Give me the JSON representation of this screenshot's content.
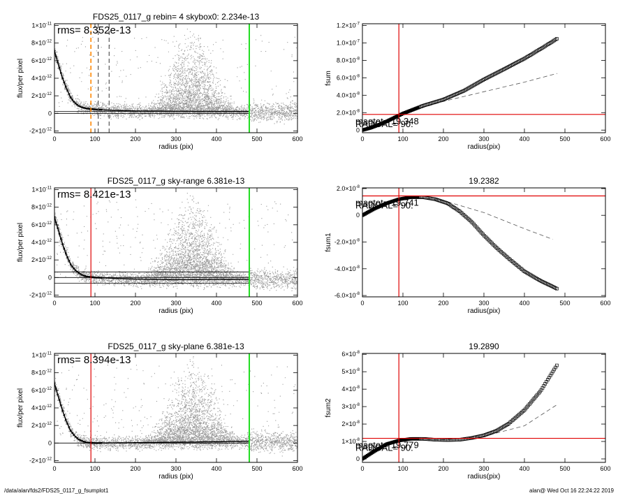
{
  "footer": {
    "left": "/data/alan/fds2/FDS25_0117_g_fsumplot1",
    "right": "alan@  Wed Oct 16 22:24:22 2019"
  },
  "colors": {
    "red": "#e00000",
    "green": "#22dd22",
    "orange": "#ff8800",
    "scatter": "#999999",
    "dash": "#555555"
  },
  "chart_data": [
    {
      "id": "left1",
      "type": "scatter",
      "title": "FDS25_0117_g rebin= 4    skybox0:  2.234e-13",
      "xlabel": "radius (pix)",
      "ylabel": "flux/per pixel",
      "xlim": [
        0,
        600
      ],
      "ylim": [
        -2.2e-12,
        1.02e-11
      ],
      "xticks": [
        0,
        100,
        200,
        300,
        400,
        500,
        600
      ],
      "xticklabels": [
        "0",
        "100",
        "200",
        "300",
        "400",
        "500",
        "600"
      ],
      "yticks": [
        -2e-12,
        0,
        2e-12,
        4e-12,
        6e-12,
        8e-12,
        1e-11
      ],
      "yticklabels": [
        {
          "m": "-2",
          "e": "-12"
        },
        {
          "m": "0",
          "e": ""
        },
        {
          "m": "2",
          "e": "-12"
        },
        {
          "m": "4",
          "e": "-12"
        },
        {
          "m": "6",
          "e": "-12"
        },
        {
          "m": "8",
          "e": "-12"
        },
        {
          "m": "1",
          "e": "-11"
        }
      ],
      "annotation": "rms= 8.352e-13",
      "profile": [
        [
          0,
          7.1e-12
        ],
        [
          10,
          5.5e-12
        ],
        [
          20,
          4e-12
        ],
        [
          30,
          2.8e-12
        ],
        [
          40,
          1.8e-12
        ],
        [
          50,
          1.2e-12
        ],
        [
          60,
          8.5e-13
        ],
        [
          70,
          6.5e-13
        ],
        [
          80,
          5.5e-13
        ],
        [
          90,
          5e-13
        ],
        [
          110,
          4.2e-13
        ],
        [
          140,
          3.5e-13
        ],
        [
          200,
          2.8e-13
        ],
        [
          300,
          2.4e-13
        ],
        [
          400,
          2.3e-13
        ],
        [
          480,
          2.2e-13
        ]
      ],
      "hlines": [
        0,
        2.234e-13
      ],
      "vlines": [
        {
          "x": 90,
          "color": "orange",
          "dash": true
        },
        {
          "x": 108,
          "color": "dash",
          "dash": true
        },
        {
          "x": 135,
          "color": "dash",
          "dash": true
        },
        {
          "x": 481,
          "color": "green",
          "dash": false
        }
      ],
      "cloud": {
        "peak_x": 340,
        "width": 55,
        "ymax": 1e-11
      }
    },
    {
      "id": "right1",
      "type": "scatter",
      "title": "",
      "xlabel": "radius(pix)",
      "ylabel": "fsum",
      "xlim": [
        0,
        600
      ],
      "ylim": [
        -3e-09,
        1.22e-07
      ],
      "xticks": [
        0,
        100,
        200,
        300,
        400,
        500,
        600
      ],
      "xticklabels": [
        "0",
        "100",
        "200",
        "300",
        "400",
        "500",
        "600"
      ],
      "yticks": [
        0,
        2e-08,
        4e-08,
        6e-08,
        8e-08,
        1e-07,
        1.2e-07
      ],
      "yticklabels": [
        {
          "m": "0",
          "e": ""
        },
        {
          "m": "2.0",
          "e": "-8"
        },
        {
          "m": "4.0",
          "e": "-8"
        },
        {
          "m": "6.0",
          "e": "-8"
        },
        {
          "m": "8.0",
          "e": "-8"
        },
        {
          "m": "1.0",
          "e": "-7"
        },
        {
          "m": "1.2",
          "e": "-7"
        }
      ],
      "points": [
        [
          0,
          0
        ],
        [
          20,
          2.5e-09
        ],
        [
          40,
          6e-09
        ],
        [
          60,
          1e-08
        ],
        [
          80,
          1.45e-08
        ],
        [
          100,
          1.9e-08
        ],
        [
          150,
          2.8e-08
        ],
        [
          200,
          3.5e-08
        ],
        [
          250,
          4.5e-08
        ],
        [
          300,
          5.8e-08
        ],
        [
          350,
          7e-08
        ],
        [
          400,
          8.2e-08
        ],
        [
          450,
          9.6e-08
        ],
        [
          481,
          1.05e-07
        ]
      ],
      "dashed": [
        [
          80,
          1.5e-08
        ],
        [
          150,
          2.6e-08
        ],
        [
          200,
          3.3e-08
        ],
        [
          300,
          4.4e-08
        ],
        [
          400,
          5.5e-08
        ],
        [
          481,
          6.5e-08
        ]
      ],
      "red_h": 1.8e-08,
      "red_v": 90,
      "labels": [
        "magtot=  19.348",
        "RADGAL= 90."
      ]
    },
    {
      "id": "left2",
      "type": "scatter",
      "title": "FDS25_0117_g sky-range  6.381e-13",
      "xlabel": "radius (pix)",
      "ylabel": "flux/per pixel",
      "xlim": [
        0,
        600
      ],
      "ylim": [
        -2.2e-12,
        1.02e-11
      ],
      "xticks": [
        0,
        100,
        200,
        300,
        400,
        500,
        600
      ],
      "xticklabels": [
        "0",
        "100",
        "200",
        "300",
        "400",
        "500",
        "600"
      ],
      "yticks": [
        -2e-12,
        0,
        2e-12,
        4e-12,
        6e-12,
        8e-12,
        1e-11
      ],
      "yticklabels": [
        {
          "m": "-2",
          "e": "-12"
        },
        {
          "m": "0",
          "e": ""
        },
        {
          "m": "2",
          "e": "-12"
        },
        {
          "m": "4",
          "e": "-12"
        },
        {
          "m": "6",
          "e": "-12"
        },
        {
          "m": "8",
          "e": "-12"
        },
        {
          "m": "1",
          "e": "-11"
        }
      ],
      "annotation": "rms= 8.421e-13",
      "profile": [
        [
          0,
          6.9e-12
        ],
        [
          10,
          5.3e-12
        ],
        [
          20,
          3.8e-12
        ],
        [
          30,
          2.5e-12
        ],
        [
          40,
          1.5e-12
        ],
        [
          50,
          9e-13
        ],
        [
          60,
          5e-13
        ],
        [
          70,
          2.5e-13
        ],
        [
          80,
          1e-13
        ],
        [
          100,
          0.0
        ],
        [
          150,
          -1e-13
        ],
        [
          200,
          -1.8e-13
        ],
        [
          300,
          -2.5e-13
        ],
        [
          400,
          -2.2e-13
        ],
        [
          480,
          -2e-13
        ]
      ],
      "hlines": [
        0,
        6.381e-13,
        -6.381e-13
      ],
      "vlines": [
        {
          "x": 90,
          "color": "red",
          "dash": false
        },
        {
          "x": 481,
          "color": "green",
          "dash": false
        }
      ],
      "cloud": {
        "peak_x": 340,
        "width": 55,
        "ymax": 1e-11
      }
    },
    {
      "id": "right2",
      "type": "scatter",
      "title": "19.2382",
      "xlabel": "radius(pix)",
      "ylabel": "fsum1",
      "xlim": [
        0,
        600
      ],
      "ylim": [
        -6.1e-08,
        2.05e-08
      ],
      "xticks": [
        0,
        100,
        200,
        300,
        400,
        500,
        600
      ],
      "xticklabels": [
        "0",
        "100",
        "200",
        "300",
        "400",
        "500",
        "600"
      ],
      "yticks": [
        -6e-08,
        -4e-08,
        -2e-08,
        0,
        2e-08
      ],
      "yticklabels": [
        {
          "m": "-6.0",
          "e": "-8"
        },
        {
          "m": "-4.0",
          "e": "-8"
        },
        {
          "m": "-2.0",
          "e": "-8"
        },
        {
          "m": "0",
          "e": ""
        },
        {
          "m": "2.0",
          "e": "-8"
        }
      ],
      "points": [
        [
          0,
          0
        ],
        [
          30,
          5e-09
        ],
        [
          60,
          9e-09
        ],
        [
          90,
          1.2e-08
        ],
        [
          120,
          1.35e-08
        ],
        [
          150,
          1.35e-08
        ],
        [
          180,
          1.2e-08
        ],
        [
          210,
          9e-09
        ],
        [
          240,
          3e-09
        ],
        [
          270,
          -5e-09
        ],
        [
          300,
          -1.5e-08
        ],
        [
          330,
          -2.4e-08
        ],
        [
          360,
          -3.2e-08
        ],
        [
          400,
          -4.2e-08
        ],
        [
          440,
          -4.9e-08
        ],
        [
          481,
          -5.5e-08
        ]
      ],
      "dashed": [
        [
          90,
          1.2e-08
        ],
        [
          150,
          1.3e-08
        ],
        [
          200,
          1.1e-08
        ],
        [
          300,
          2e-09
        ],
        [
          400,
          -1e-08
        ],
        [
          470,
          -1.8e-08
        ]
      ],
      "red_h": 1.45e-08,
      "red_v": 90,
      "labels": [
        "magtot=  19.741",
        "RADGAL= 90."
      ]
    },
    {
      "id": "left3",
      "type": "scatter",
      "title": "FDS25_0117_g sky-plane  6.381e-13",
      "xlabel": "radius (pix)",
      "ylabel": "flux/per pixel",
      "xlim": [
        0,
        600
      ],
      "ylim": [
        -2.2e-12,
        1.02e-11
      ],
      "xticks": [
        0,
        100,
        200,
        300,
        400,
        500,
        600
      ],
      "xticklabels": [
        "0",
        "100",
        "200",
        "300",
        "400",
        "500",
        "600"
      ],
      "yticks": [
        -2e-12,
        0,
        2e-12,
        4e-12,
        6e-12,
        8e-12,
        1e-11
      ],
      "yticklabels": [
        {
          "m": "-2",
          "e": "-12"
        },
        {
          "m": "0",
          "e": ""
        },
        {
          "m": "2",
          "e": "-12"
        },
        {
          "m": "4",
          "e": "-12"
        },
        {
          "m": "6",
          "e": "-12"
        },
        {
          "m": "8",
          "e": "-12"
        },
        {
          "m": "1",
          "e": "-11"
        }
      ],
      "annotation": "rms= 8.394e-13",
      "profile": [
        [
          0,
          6.8e-12
        ],
        [
          10,
          5.2e-12
        ],
        [
          20,
          3.7e-12
        ],
        [
          30,
          2.4e-12
        ],
        [
          40,
          1.4e-12
        ],
        [
          50,
          8e-13
        ],
        [
          60,
          4e-13
        ],
        [
          70,
          2e-13
        ],
        [
          80,
          5e-14
        ],
        [
          100,
          0.0
        ],
        [
          150,
          2e-14
        ],
        [
          200,
          5e-14
        ],
        [
          300,
          1e-13
        ],
        [
          400,
          1.5e-13
        ],
        [
          480,
          2e-13
        ]
      ],
      "hlines": [
        0
      ],
      "vlines": [
        {
          "x": 90,
          "color": "red",
          "dash": false
        },
        {
          "x": 481,
          "color": "green",
          "dash": false
        }
      ],
      "cloud": {
        "peak_x": 340,
        "width": 55,
        "ymax": 1e-11
      }
    },
    {
      "id": "right3",
      "type": "scatter",
      "title": "19.2890",
      "xlabel": "radius(pix)",
      "ylabel": "fsum2",
      "xlim": [
        0,
        600
      ],
      "ylim": [
        -2e-09,
        6.05e-08
      ],
      "xticks": [
        0,
        100,
        200,
        300,
        400,
        500,
        600
      ],
      "xticklabels": [
        "0",
        "100",
        "200",
        "300",
        "400",
        "500",
        "600"
      ],
      "yticks": [
        0,
        1e-08,
        2e-08,
        3e-08,
        4e-08,
        5e-08,
        6e-08
      ],
      "yticklabels": [
        {
          "m": "0",
          "e": ""
        },
        {
          "m": "1",
          "e": "-8"
        },
        {
          "m": "2",
          "e": "-8"
        },
        {
          "m": "3",
          "e": "-8"
        },
        {
          "m": "4",
          "e": "-8"
        },
        {
          "m": "5",
          "e": "-8"
        },
        {
          "m": "6",
          "e": "-8"
        }
      ],
      "points": [
        [
          0,
          0
        ],
        [
          30,
          4.5e-09
        ],
        [
          60,
          8.5e-09
        ],
        [
          90,
          1.05e-08
        ],
        [
          120,
          1.15e-08
        ],
        [
          150,
          1.15e-08
        ],
        [
          180,
          1.1e-08
        ],
        [
          210,
          1.08e-08
        ],
        [
          240,
          1.1e-08
        ],
        [
          270,
          1.2e-08
        ],
        [
          300,
          1.35e-08
        ],
        [
          330,
          1.6e-08
        ],
        [
          360,
          2e-08
        ],
        [
          400,
          2.8e-08
        ],
        [
          440,
          3.9e-08
        ],
        [
          481,
          5.4e-08
        ]
      ],
      "dashed": [
        [
          90,
          1.05e-08
        ],
        [
          150,
          1.12e-08
        ],
        [
          200,
          1.1e-08
        ],
        [
          300,
          1.3e-08
        ],
        [
          400,
          1.9e-08
        ],
        [
          480,
          3.1e-08
        ]
      ],
      "red_h": 1.18e-08,
      "red_v": 90,
      "labels": [
        "magtot=  19.779",
        "RADGAL= 90."
      ]
    }
  ]
}
